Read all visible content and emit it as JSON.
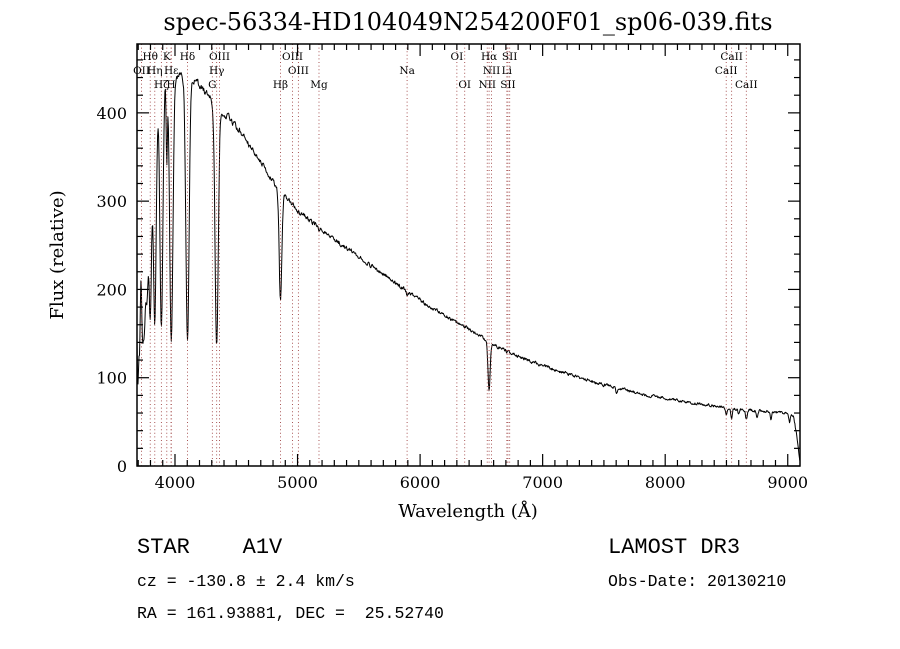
{
  "chart_data": {
    "type": "line",
    "title": "spec-56334-HD104049N254200F01_sp06-039.fits",
    "xlabel": "Wavelength (Å)",
    "ylabel": "Flux (relative)",
    "xlim": [
      3690,
      9100
    ],
    "ylim": [
      0,
      478
    ],
    "xticks": [
      4000,
      5000,
      6000,
      7000,
      8000,
      9000
    ],
    "yticks": [
      0,
      100,
      200,
      300,
      400
    ],
    "x_minor_step": 100,
    "y_minor_step": 20,
    "grid": false,
    "background_color": "#ffffff",
    "line_color": "#000000",
    "marker_color": "#a04545",
    "spectral_lines": [
      {
        "label": "OII",
        "wavelength": 3727,
        "row": 2
      },
      {
        "label": "Hθ",
        "wavelength": 3798,
        "row": 1
      },
      {
        "label": "Hη",
        "wavelength": 3835,
        "row": 2
      },
      {
        "label": "Hζ",
        "wavelength": 3889,
        "row": 3
      },
      {
        "label": "K",
        "wavelength": 3933,
        "row": 1
      },
      {
        "label": "H",
        "wavelength": 3968,
        "row": 3
      },
      {
        "label": "Hε",
        "wavelength": 3970,
        "row": 2
      },
      {
        "label": "Hδ",
        "wavelength": 4102,
        "row": 1
      },
      {
        "label": "G",
        "wavelength": 4305,
        "row": 3
      },
      {
        "label": "Hγ",
        "wavelength": 4340,
        "row": 2
      },
      {
        "label": "OIII",
        "wavelength": 4363,
        "row": 1
      },
      {
        "label": "Hβ",
        "wavelength": 4861,
        "row": 3
      },
      {
        "label": "OIII",
        "wavelength": 4959,
        "row": 1
      },
      {
        "label": "OIII",
        "wavelength": 5007,
        "row": 2
      },
      {
        "label": "Mg",
        "wavelength": 5175,
        "row": 3
      },
      {
        "label": "Na",
        "wavelength": 5894,
        "row": 2
      },
      {
        "label": "OI",
        "wavelength": 6300,
        "row": 1
      },
      {
        "label": "OI",
        "wavelength": 6364,
        "row": 3
      },
      {
        "label": "NII",
        "wavelength": 6548,
        "row": 3
      },
      {
        "label": "Hα",
        "wavelength": 6563,
        "row": 1
      },
      {
        "label": "NII",
        "wavelength": 6583,
        "row": 2
      },
      {
        "label": "Li",
        "wavelength": 6708,
        "row": 2
      },
      {
        "label": "SII",
        "wavelength": 6717,
        "row": 3
      },
      {
        "label": "SII",
        "wavelength": 6731,
        "row": 1
      },
      {
        "label": "CaII",
        "wavelength": 8498,
        "row": 2
      },
      {
        "label": "CaII",
        "wavelength": 8542,
        "row": 1
      },
      {
        "label": "CaII",
        "wavelength": 8662,
        "row": 3
      }
    ],
    "continuum": [
      [
        3690,
        205
      ],
      [
        3705,
        255
      ],
      [
        3720,
        305
      ],
      [
        3740,
        345
      ],
      [
        3760,
        370
      ],
      [
        3780,
        390
      ],
      [
        3800,
        404
      ],
      [
        3830,
        418
      ],
      [
        3860,
        428
      ],
      [
        3900,
        436
      ],
      [
        3950,
        440
      ],
      [
        4010,
        442
      ],
      [
        4070,
        442
      ],
      [
        4130,
        439
      ],
      [
        4190,
        433
      ],
      [
        4250,
        424
      ],
      [
        4310,
        414
      ],
      [
        4370,
        404
      ],
      [
        4440,
        394
      ],
      [
        4520,
        381
      ],
      [
        4620,
        361
      ],
      [
        4720,
        340
      ],
      [
        4820,
        319
      ],
      [
        4920,
        303
      ],
      [
        5000,
        290
      ],
      [
        5100,
        278
      ],
      [
        5200,
        267
      ],
      [
        5300,
        257
      ],
      [
        5400,
        247
      ],
      [
        5500,
        237
      ],
      [
        5600,
        227
      ],
      [
        5700,
        217
      ],
      [
        5800,
        207
      ],
      [
        5900,
        197
      ],
      [
        6000,
        188
      ],
      [
        6100,
        179
      ],
      [
        6200,
        171
      ],
      [
        6300,
        163
      ],
      [
        6400,
        155
      ],
      [
        6500,
        146
      ],
      [
        6600,
        138
      ],
      [
        6700,
        130
      ],
      [
        6800,
        124
      ],
      [
        6900,
        119
      ],
      [
        7000,
        114
      ],
      [
        7100,
        109
      ],
      [
        7200,
        105
      ],
      [
        7300,
        100
      ],
      [
        7400,
        96
      ],
      [
        7500,
        92
      ],
      [
        7600,
        89
      ],
      [
        7700,
        85
      ],
      [
        7800,
        82
      ],
      [
        7900,
        79
      ],
      [
        8000,
        77
      ],
      [
        8100,
        74
      ],
      [
        8200,
        72
      ],
      [
        8300,
        70
      ],
      [
        8400,
        68
      ],
      [
        8500,
        66
      ],
      [
        8600,
        64
      ],
      [
        8700,
        63
      ],
      [
        8800,
        62
      ],
      [
        8900,
        61
      ],
      [
        9000,
        60
      ],
      [
        9045,
        57
      ],
      [
        9070,
        38
      ],
      [
        9100,
        4
      ]
    ],
    "absorption_lines": [
      [
        3697,
        120,
        6
      ],
      [
        3712,
        135,
        7
      ],
      [
        3734,
        155,
        8
      ],
      [
        3750,
        165,
        9
      ],
      [
        3771,
        180,
        10
      ],
      [
        3798,
        230,
        11
      ],
      [
        3835,
        258,
        12
      ],
      [
        3889,
        278,
        12
      ],
      [
        3933,
        95,
        5
      ],
      [
        3970,
        300,
        13
      ],
      [
        4102,
        300,
        13
      ],
      [
        4340,
        272,
        13
      ],
      [
        4861,
        124,
        11
      ],
      [
        5175,
        5,
        5
      ],
      [
        5894,
        6,
        4
      ],
      [
        6563,
        55,
        9
      ],
      [
        7605,
        7,
        8
      ],
      [
        8498,
        9,
        6
      ],
      [
        8542,
        11,
        6
      ],
      [
        8598,
        5,
        5
      ],
      [
        8662,
        11,
        6
      ],
      [
        8750,
        8,
        6
      ],
      [
        8863,
        9,
        6
      ],
      [
        9015,
        10,
        6
      ]
    ],
    "noise_base": 1.2,
    "noise_scale": 0.006
  },
  "annotations": {
    "object_type": "STAR    A1V",
    "survey": "LAMOST DR3",
    "cz": "cz = -130.8 ± 2.4 km/s",
    "obs_date": "Obs-Date: 20130210",
    "radec": "RA = 161.93881, DEC =  25.52740"
  }
}
